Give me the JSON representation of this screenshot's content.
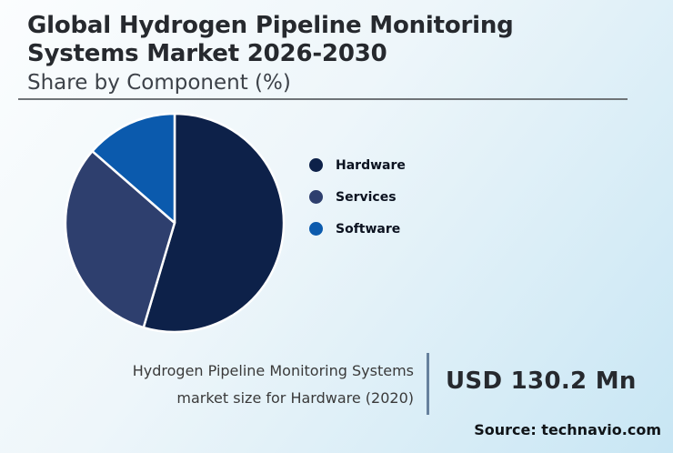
{
  "header": {
    "title": "Global Hydrogen Pipeline Monitoring\nSystems Market 2026-2030",
    "subtitle": "Share by Component (%)"
  },
  "chart_data": {
    "type": "pie",
    "title": "Global Hydrogen Pipeline Monitoring Systems Market 2026-2030",
    "subtitle": "Share by Component (%)",
    "categories": [
      "Hardware",
      "Services",
      "Software"
    ],
    "values": [
      54.6,
      31.8,
      13.6
    ],
    "colors": [
      "#0d2149",
      "#2e3f6e",
      "#0b5aad"
    ],
    "start_angle_deg": 0,
    "direction": "clockwise",
    "legend_position": "right",
    "slice_border_color": "#ffffff"
  },
  "legend": {
    "items": [
      {
        "label": "Hardware",
        "color": "#0d2149"
      },
      {
        "label": "Services",
        "color": "#2e3f6e"
      },
      {
        "label": "Software",
        "color": "#0b5aad"
      }
    ]
  },
  "caption": {
    "line1": "Hydrogen Pipeline Monitoring Systems",
    "line2": "market size for Hardware (2020)",
    "value": "USD 130.2 Mn"
  },
  "source": {
    "label": "Source: technavio.com"
  },
  "colors": {
    "background_start": "#fbfdfe",
    "background_end": "#c8e6f4",
    "header_rule": "#6f7478",
    "caption_divider": "#66819d",
    "title_text": "#26292e"
  }
}
